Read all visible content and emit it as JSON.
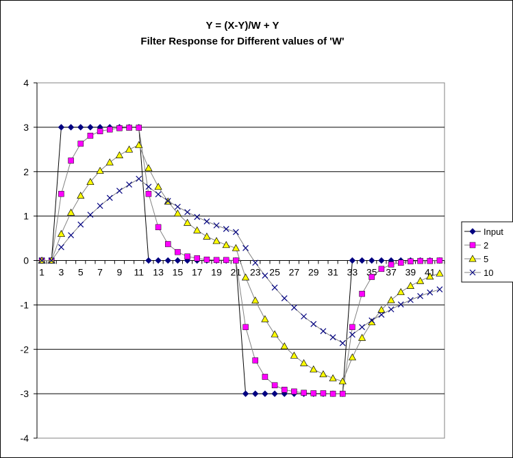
{
  "chart_data": {
    "type": "line",
    "title": "Y = (X-Y)/W + Y",
    "subtitle": "Filter Response for Different values of 'W'",
    "xlabel": "",
    "ylabel": "",
    "ylim": [
      -4,
      4
    ],
    "y_ticks": [
      -4,
      -3,
      -2,
      -1,
      0,
      1,
      2,
      3,
      4
    ],
    "x_tick_labels": [
      "1",
      "3",
      "5",
      "7",
      "9",
      "11",
      "13",
      "15",
      "17",
      "19",
      "21",
      "23",
      "25",
      "27",
      "29",
      "31",
      "33",
      "35",
      "37",
      "39",
      "41"
    ],
    "x": [
      1,
      2,
      3,
      4,
      5,
      6,
      7,
      8,
      9,
      10,
      11,
      12,
      13,
      14,
      15,
      16,
      17,
      18,
      19,
      20,
      21,
      22,
      23,
      24,
      25,
      26,
      27,
      28,
      29,
      30,
      31,
      32,
      33,
      34,
      35,
      36,
      37,
      38,
      39,
      40,
      41,
      42
    ],
    "grid": "horizontal",
    "legend_position": "right",
    "series": [
      {
        "name": "Input",
        "marker": "diamond",
        "color": "#000080",
        "values": [
          0,
          0,
          3,
          3,
          3,
          3,
          3,
          3,
          3,
          3,
          3,
          0,
          0,
          0,
          0,
          0,
          0,
          0,
          0,
          0,
          0,
          -3,
          -3,
          -3,
          -3,
          -3,
          -3,
          -3,
          -3,
          -3,
          -3,
          -3,
          0,
          0,
          0,
          0,
          0,
          0,
          0,
          0,
          0,
          0
        ]
      },
      {
        "name": "2",
        "marker": "square",
        "color": "#ff00ff",
        "values": [
          0,
          0,
          1.5,
          2.25,
          2.63,
          2.81,
          2.91,
          2.95,
          2.98,
          2.99,
          2.99,
          1.5,
          0.75,
          0.37,
          0.19,
          0.09,
          0.05,
          0.02,
          0.01,
          0.01,
          0,
          -1.5,
          -2.25,
          -2.62,
          -2.81,
          -2.91,
          -2.95,
          -2.98,
          -2.99,
          -2.99,
          -3,
          -3,
          -1.5,
          -0.75,
          -0.37,
          -0.19,
          -0.09,
          -0.05,
          -0.02,
          -0.01,
          -0.01,
          0
        ]
      },
      {
        "name": "5",
        "marker": "triangle",
        "color": "#ffff00",
        "values": [
          0,
          0,
          0.6,
          1.08,
          1.46,
          1.77,
          2.02,
          2.21,
          2.37,
          2.5,
          2.6,
          2.08,
          1.66,
          1.33,
          1.06,
          0.85,
          0.68,
          0.54,
          0.44,
          0.35,
          0.28,
          -0.38,
          -0.9,
          -1.32,
          -1.66,
          -1.93,
          -2.14,
          -2.31,
          -2.45,
          -2.56,
          -2.65,
          -2.72,
          -2.18,
          -1.74,
          -1.39,
          -1.11,
          -0.89,
          -0.71,
          -0.57,
          -0.46,
          -0.36,
          -0.29
        ]
      },
      {
        "name": "10",
        "marker": "x",
        "color": "#000080",
        "values": [
          0,
          0,
          0.3,
          0.57,
          0.81,
          1.03,
          1.23,
          1.41,
          1.57,
          1.71,
          1.84,
          1.66,
          1.49,
          1.34,
          1.21,
          1.09,
          0.98,
          0.88,
          0.79,
          0.71,
          0.64,
          0.28,
          -0.05,
          -0.34,
          -0.61,
          -0.85,
          -1.06,
          -1.26,
          -1.43,
          -1.59,
          -1.73,
          -1.86,
          -1.67,
          -1.5,
          -1.35,
          -1.22,
          -1.1,
          -0.99,
          -0.89,
          -0.8,
          -0.72,
          -0.65
        ]
      }
    ]
  }
}
